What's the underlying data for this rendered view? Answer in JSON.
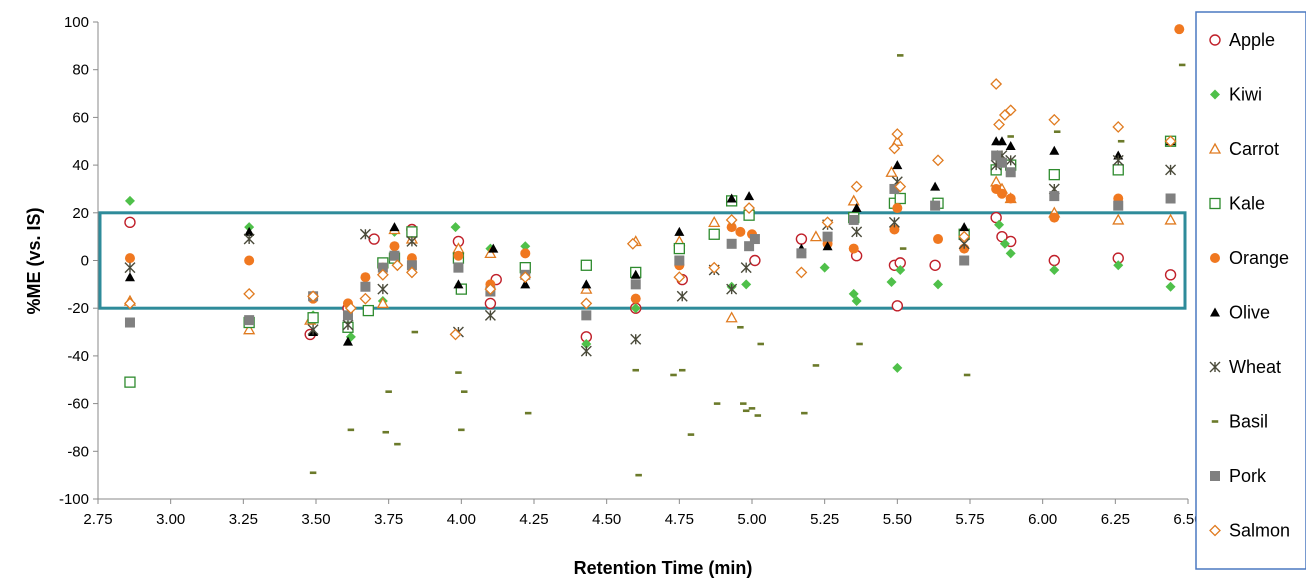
{
  "chart_data": {
    "type": "scatter",
    "title": "",
    "xlabel": "Retention Time (min)",
    "ylabel": "%ME (vs. IS)",
    "xlim": [
      2.75,
      6.5
    ],
    "ylim": [
      -100,
      100
    ],
    "xticks": [
      2.75,
      3.0,
      3.25,
      3.5,
      3.75,
      4.0,
      4.25,
      4.5,
      4.75,
      5.0,
      5.25,
      5.5,
      5.75,
      6.0,
      6.25,
      6.5
    ],
    "yticks": [
      -100,
      -80,
      -60,
      -40,
      -20,
      0,
      20,
      40,
      60,
      80,
      100
    ],
    "grid": false,
    "legend_position": "right",
    "highlight_band": {
      "y_min": -20,
      "y_max": 20,
      "color": "#2e8b9a"
    },
    "series": [
      {
        "name": "Apple",
        "marker": "circle-open",
        "color": "#c0202a",
        "x": [
          2.86,
          3.48,
          3.61,
          3.7,
          3.83,
          3.99,
          4.1,
          4.12,
          4.43,
          4.6,
          4.76,
          5.01,
          5.17,
          5.36,
          5.49,
          5.5,
          5.51,
          5.63,
          5.84,
          5.86,
          5.89,
          6.04,
          6.26,
          6.44
        ],
        "y": [
          16,
          -31,
          -20,
          9,
          13,
          8,
          -18,
          -8,
          -32,
          -20,
          -8,
          0,
          9,
          2,
          -2,
          -19,
          -1,
          -2,
          18,
          10,
          8,
          0,
          1,
          -6
        ]
      },
      {
        "name": "Kiwi",
        "marker": "diamond",
        "color": "#4fc04a",
        "x": [
          2.86,
          3.27,
          3.49,
          3.62,
          3.73,
          3.77,
          3.83,
          3.98,
          4.1,
          4.22,
          4.43,
          4.6,
          4.75,
          4.93,
          4.98,
          5.25,
          5.35,
          5.36,
          5.48,
          5.5,
          5.51,
          5.64,
          5.85,
          5.87,
          5.89,
          6.04,
          6.26,
          6.44
        ],
        "y": [
          25,
          14,
          -23,
          -32,
          -17,
          12,
          12,
          14,
          5,
          6,
          -35,
          -20,
          5,
          -11,
          -10,
          -3,
          -14,
          -17,
          -9,
          -45,
          -4,
          -10,
          15,
          7,
          3,
          -4,
          -2,
          -11
        ]
      },
      {
        "name": "Carrot",
        "marker": "triangle-open",
        "color": "#e07b20",
        "x": [
          2.86,
          3.27,
          3.48,
          3.73,
          3.77,
          3.83,
          3.99,
          4.1,
          4.43,
          4.6,
          4.75,
          4.87,
          4.93,
          5.22,
          5.35,
          5.48,
          5.5,
          5.84,
          5.86,
          5.89,
          6.04,
          6.26,
          6.44
        ],
        "y": [
          -17,
          -29,
          -25,
          -18,
          13,
          9,
          5,
          3,
          -12,
          8,
          8,
          16,
          -24,
          10,
          25,
          37,
          50,
          33,
          30,
          26,
          20,
          17,
          17
        ]
      },
      {
        "name": "Kale",
        "marker": "square-open",
        "color": "#2e8b2e",
        "x": [
          2.86,
          3.27,
          3.49,
          3.61,
          3.68,
          3.73,
          3.77,
          3.83,
          3.99,
          4.0,
          4.22,
          4.43,
          4.6,
          4.75,
          4.87,
          4.93,
          4.99,
          5.35,
          5.49,
          5.51,
          5.64,
          5.73,
          5.84,
          5.89,
          6.04,
          6.26,
          6.44
        ],
        "y": [
          -51,
          -26,
          -24,
          -28,
          -21,
          -1,
          1,
          12,
          1,
          -12,
          -3,
          -2,
          -5,
          5,
          11,
          25,
          19,
          18,
          24,
          26,
          24,
          11,
          38,
          40,
          36,
          38,
          50
        ]
      },
      {
        "name": "Orange",
        "marker": "circle",
        "color": "#f07820",
        "x": [
          2.86,
          3.27,
          3.49,
          3.61,
          3.67,
          3.73,
          3.77,
          3.83,
          3.99,
          4.1,
          4.22,
          4.6,
          4.75,
          4.93,
          4.96,
          5.0,
          5.26,
          5.35,
          5.49,
          5.5,
          5.64,
          5.73,
          5.84,
          5.86,
          5.89,
          6.04,
          6.26,
          6.47
        ],
        "y": [
          1,
          0,
          -16,
          -18,
          -7,
          -3,
          6,
          1,
          2,
          -10,
          3,
          -16,
          -2,
          14,
          12,
          11,
          7,
          5,
          13,
          22,
          9,
          5,
          30,
          28,
          26,
          18,
          26,
          97
        ]
      },
      {
        "name": "Olive",
        "marker": "triangle",
        "color": "#000000",
        "x": [
          2.86,
          3.27,
          3.49,
          3.61,
          3.77,
          3.99,
          4.11,
          4.22,
          4.43,
          4.6,
          4.75,
          4.93,
          4.99,
          5.17,
          5.26,
          5.36,
          5.5,
          5.63,
          5.73,
          5.84,
          5.86,
          5.89,
          6.04,
          6.26,
          6.44
        ],
        "y": [
          -7,
          12,
          -30,
          -34,
          14,
          -10,
          5,
          -10,
          -10,
          -6,
          12,
          26,
          27,
          5,
          6,
          22,
          40,
          31,
          14,
          50,
          50,
          48,
          46,
          44,
          50
        ]
      },
      {
        "name": "Wheat",
        "marker": "asterisk",
        "color": "#4a4a3a",
        "x": [
          2.86,
          3.27,
          3.49,
          3.61,
          3.67,
          3.73,
          3.83,
          3.99,
          4.1,
          4.43,
          4.6,
          4.76,
          4.87,
          4.93,
          4.98,
          5.26,
          5.36,
          5.49,
          5.5,
          5.73,
          5.84,
          5.86,
          5.89,
          6.04,
          6.26,
          6.44
        ],
        "y": [
          -3,
          9,
          -29,
          -27,
          11,
          -12,
          8,
          -30,
          -23,
          -38,
          -33,
          -15,
          -4,
          -12,
          -3,
          15,
          12,
          16,
          33,
          7,
          40,
          44,
          42,
          30,
          42,
          38
        ]
      },
      {
        "name": "Basil",
        "marker": "dash",
        "color": "#6b7a2a",
        "x": [
          3.49,
          3.62,
          3.74,
          3.75,
          3.78,
          3.84,
          3.99,
          4.0,
          4.01,
          4.23,
          4.6,
          4.61,
          4.73,
          4.76,
          4.79,
          4.88,
          4.96,
          4.97,
          4.98,
          5.0,
          5.02,
          5.03,
          5.18,
          5.22,
          5.37,
          5.51,
          5.52,
          5.74,
          5.89,
          6.05,
          6.27,
          6.48
        ],
        "y": [
          -89,
          -71,
          -72,
          -55,
          -77,
          -30,
          -47,
          -71,
          -55,
          -64,
          -46,
          -90,
          -48,
          -46,
          -73,
          -60,
          -28,
          -60,
          -63,
          -62,
          -65,
          -35,
          -64,
          -44,
          -35,
          86,
          5,
          -48,
          52,
          54,
          50,
          82
        ]
      },
      {
        "name": "Pork",
        "marker": "square",
        "color": "#808080",
        "x": [
          2.86,
          3.27,
          3.49,
          3.61,
          3.67,
          3.73,
          3.77,
          3.83,
          3.99,
          4.1,
          4.22,
          4.43,
          4.6,
          4.75,
          4.93,
          4.99,
          5.01,
          5.17,
          5.26,
          5.35,
          5.49,
          5.63,
          5.73,
          5.84,
          5.86,
          5.89,
          6.04,
          6.26,
          6.44
        ],
        "y": [
          -26,
          -25,
          -15,
          -23,
          -11,
          -3,
          2,
          -2,
          -3,
          -13,
          -6,
          -23,
          -10,
          0,
          7,
          6,
          9,
          3,
          10,
          17,
          30,
          23,
          0,
          44,
          41,
          37,
          27,
          23,
          26
        ]
      },
      {
        "name": "Salmon",
        "marker": "diamond-open",
        "color": "#e07b20",
        "x": [
          2.86,
          3.27,
          3.49,
          3.62,
          3.67,
          3.73,
          3.78,
          3.83,
          3.98,
          4.1,
          4.22,
          4.43,
          4.59,
          4.75,
          4.87,
          4.93,
          4.99,
          5.17,
          5.26,
          5.36,
          5.49,
          5.5,
          5.51,
          5.64,
          5.73,
          5.84,
          5.85,
          5.87,
          5.89,
          6.04,
          6.26,
          6.44
        ],
        "y": [
          -18,
          -14,
          -15,
          -20,
          -16,
          -6,
          -2,
          -5,
          -31,
          -12,
          -7,
          -18,
          7,
          -7,
          -3,
          17,
          22,
          -5,
          16,
          31,
          47,
          53,
          31,
          42,
          10,
          74,
          57,
          61,
          63,
          59,
          56,
          50
        ]
      }
    ]
  }
}
